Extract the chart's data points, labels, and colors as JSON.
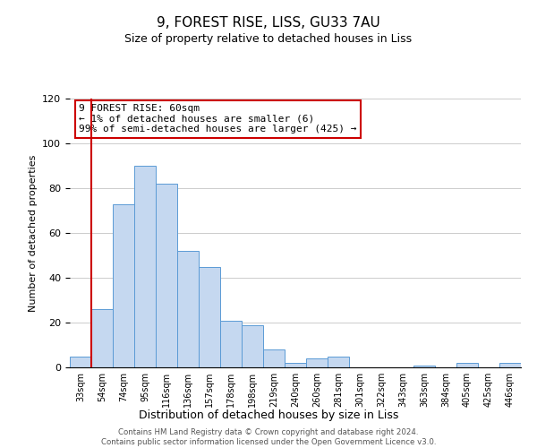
{
  "title": "9, FOREST RISE, LISS, GU33 7AU",
  "subtitle": "Size of property relative to detached houses in Liss",
  "xlabel": "Distribution of detached houses by size in Liss",
  "ylabel": "Number of detached properties",
  "bar_labels": [
    "33sqm",
    "54sqm",
    "74sqm",
    "95sqm",
    "116sqm",
    "136sqm",
    "157sqm",
    "178sqm",
    "198sqm",
    "219sqm",
    "240sqm",
    "260sqm",
    "281sqm",
    "301sqm",
    "322sqm",
    "343sqm",
    "363sqm",
    "384sqm",
    "405sqm",
    "425sqm",
    "446sqm"
  ],
  "bar_values": [
    5,
    26,
    73,
    90,
    82,
    52,
    45,
    21,
    19,
    8,
    2,
    4,
    5,
    0,
    0,
    0,
    1,
    0,
    2,
    0,
    2
  ],
  "bar_color": "#c5d8f0",
  "bar_edge_color": "#5b9bd5",
  "vline_x": 1.0,
  "vline_color": "#cc0000",
  "annotation_text": "9 FOREST RISE: 60sqm\n← 1% of detached houses are smaller (6)\n99% of semi-detached houses are larger (425) →",
  "annotation_box_color": "#ffffff",
  "annotation_box_edge_color": "#cc0000",
  "ylim": [
    0,
    120
  ],
  "yticks": [
    0,
    20,
    40,
    60,
    80,
    100,
    120
  ],
  "footer_text": "Contains HM Land Registry data © Crown copyright and database right 2024.\nContains public sector information licensed under the Open Government Licence v3.0.",
  "background_color": "#ffffff",
  "grid_color": "#cccccc"
}
